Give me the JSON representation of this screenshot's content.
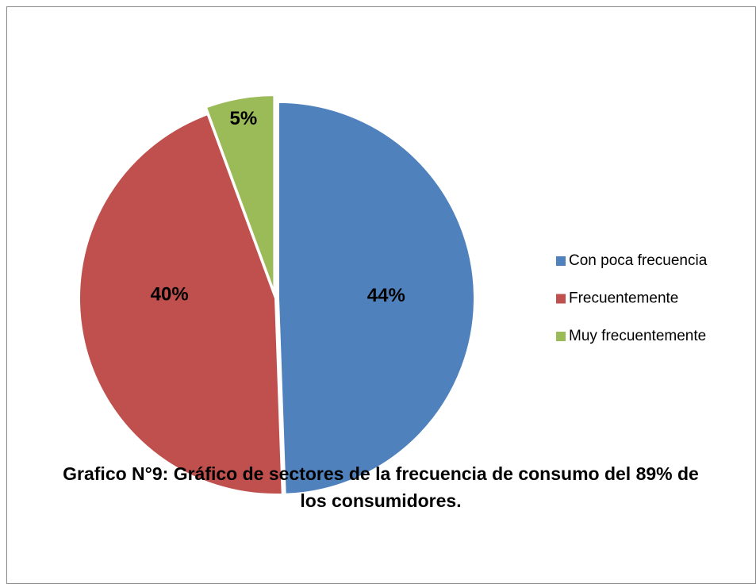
{
  "chart_data": {
    "type": "pie",
    "title": "Grafico N°9: Gráfico de sectores de la frecuencia de consumo del 89% de los consumidores.",
    "categories": [
      "Con poca frecuencia",
      "Frecuentemente",
      "Muy frecuentemente"
    ],
    "values": [
      44,
      40,
      5
    ],
    "value_labels": [
      "44%",
      "40%",
      "5%"
    ],
    "colors": [
      "#4f81bd",
      "#c0504d",
      "#9bbb59"
    ],
    "legend": "right"
  }
}
